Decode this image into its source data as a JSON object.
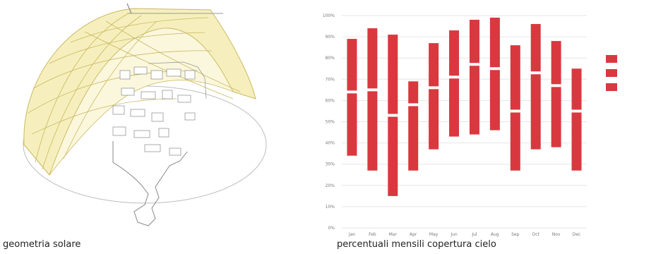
{
  "captions": {
    "left": "geometria solare",
    "right": "percentuali mensili copertura cielo"
  },
  "colors": {
    "bar": "#d9383f",
    "dome_fill": "#f6efbd",
    "dome_line": "#c9b861",
    "ground_line": "#bdbdbd",
    "grid": "#e6e6e6"
  },
  "chart_data": {
    "type": "bar",
    "subtype": "floating-range",
    "title": "",
    "xlabel": "",
    "ylabel": "",
    "ylim": [
      0,
      100
    ],
    "y_ticks": [
      "0%",
      "10%",
      "20%",
      "30%",
      "40%",
      "50%",
      "60%",
      "70%",
      "80%",
      "90%",
      "100%"
    ],
    "categories": [
      "Jan",
      "Feb",
      "Mar",
      "Apr",
      "May",
      "Jun",
      "Jul",
      "Aug",
      "Sep",
      "Oct",
      "Nov",
      "Dec"
    ],
    "series": [
      {
        "name": "",
        "low": [
          34,
          27,
          15,
          27,
          37,
          43,
          44,
          46,
          27,
          37,
          38,
          27
        ]
      },
      {
        "name": "",
        "mid": [
          64,
          65,
          53,
          58,
          66,
          71,
          77,
          75,
          55,
          73,
          67,
          55
        ]
      },
      {
        "name": "",
        "high": [
          89,
          94,
          91,
          69,
          87,
          93,
          98,
          99,
          86,
          96,
          88,
          75
        ]
      }
    ],
    "legend": {
      "position": "right",
      "entries": [
        "",
        "",
        ""
      ]
    },
    "grid": true
  }
}
